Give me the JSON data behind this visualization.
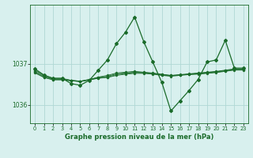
{
  "title": "Graphe pression niveau de la mer (hPa)",
  "background_color": "#d8f0ee",
  "grid_color": "#b0d8d4",
  "line_color": "#1a6b2a",
  "xlim": [
    -0.5,
    23.5
  ],
  "ylim": [
    1035.55,
    1038.45
  ],
  "yticks": [
    1036,
    1037
  ],
  "xticks": [
    0,
    1,
    2,
    3,
    4,
    5,
    6,
    7,
    8,
    9,
    10,
    11,
    12,
    13,
    14,
    15,
    16,
    17,
    18,
    19,
    20,
    21,
    22,
    23
  ],
  "series": [
    [
      1036.85,
      1036.72,
      1036.65,
      1036.65,
      1036.6,
      1036.58,
      1036.62,
      1036.68,
      1036.72,
      1036.78,
      1036.8,
      1036.82,
      1036.8,
      1036.78,
      1036.75,
      1036.72,
      1036.74,
      1036.76,
      1036.78,
      1036.8,
      1036.82,
      1036.85,
      1036.88,
      1036.88
    ],
    [
      1036.82,
      1036.7,
      1036.63,
      1036.63,
      1036.6,
      1036.58,
      1036.62,
      1036.67,
      1036.7,
      1036.76,
      1036.78,
      1036.8,
      1036.79,
      1036.77,
      1036.74,
      1036.72,
      1036.73,
      1036.75,
      1036.77,
      1036.79,
      1036.81,
      1036.84,
      1036.87,
      1036.87
    ],
    [
      1036.8,
      1036.68,
      1036.62,
      1036.62,
      1036.59,
      1036.57,
      1036.61,
      1036.66,
      1036.68,
      1036.74,
      1036.77,
      1036.79,
      1036.78,
      1036.76,
      1036.73,
      1036.71,
      1036.73,
      1036.75,
      1036.76,
      1036.78,
      1036.8,
      1036.83,
      1036.86,
      1036.86
    ],
    [
      1036.78,
      1036.67,
      1036.61,
      1036.61,
      1036.59,
      1036.57,
      1036.61,
      1036.65,
      1036.67,
      1036.72,
      1036.75,
      1036.77,
      1036.77,
      1036.75,
      1036.72,
      1036.7,
      1036.72,
      1036.74,
      1036.75,
      1036.77,
      1036.79,
      1036.82,
      1036.85,
      1036.85
    ]
  ],
  "main_series": [
    1036.88,
    1036.73,
    1036.65,
    1036.65,
    1036.52,
    1036.48,
    1036.6,
    1036.85,
    1037.1,
    1037.5,
    1037.78,
    1038.15,
    1037.55,
    1037.05,
    1036.55,
    1035.85,
    1036.1,
    1036.35,
    1036.62,
    1037.05,
    1037.1,
    1037.58,
    1036.9,
    1036.9
  ]
}
